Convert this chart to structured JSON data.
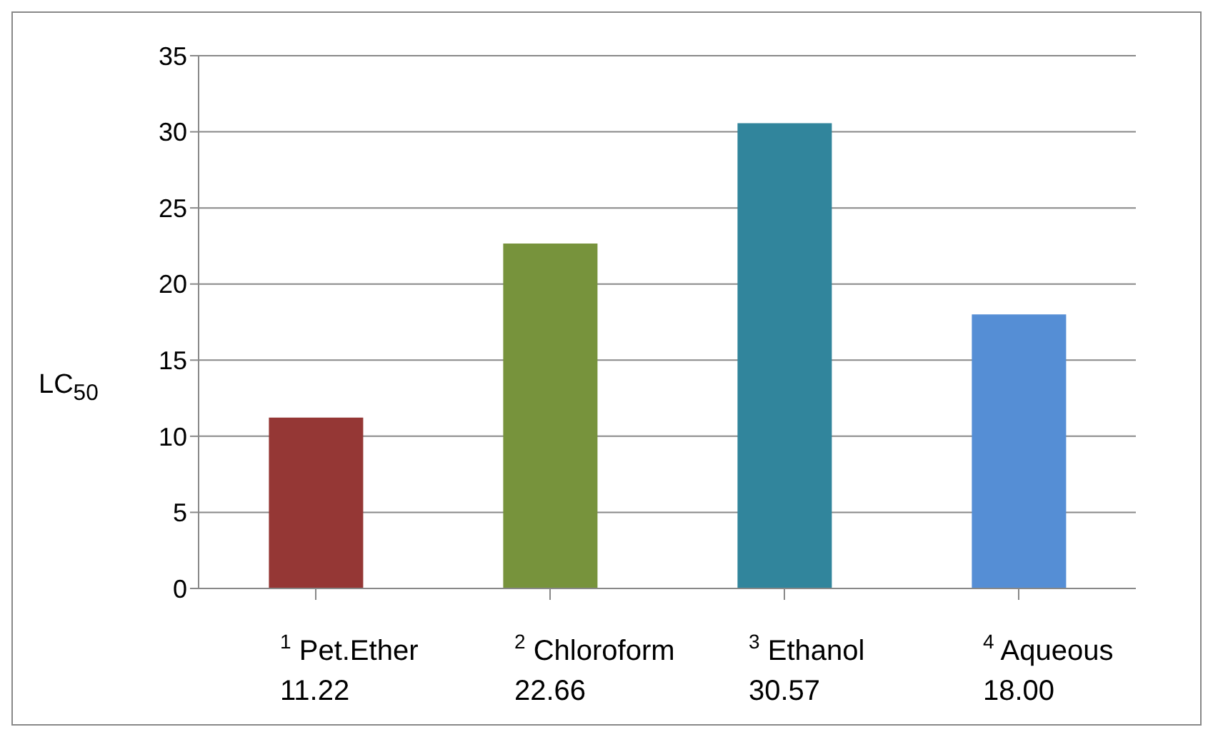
{
  "chart_data": {
    "type": "bar",
    "ylabel": "LC$_{50}$",
    "categories": [
      "$^{1}$ Pet.Ether 11.22",
      "$^{2}$ Chloroform 22.66",
      "$^{3}$ Ethanol 30.57",
      "$^{4}$ Aqueous 18.00"
    ],
    "values": [
      11.22,
      22.66,
      30.57,
      18.0
    ],
    "colors": [
      "#953735",
      "#77933c",
      "#31859c",
      "#558ed5"
    ],
    "ylim": [
      0,
      35
    ],
    "yticks": [
      0,
      5,
      10,
      15,
      20,
      25,
      30,
      35
    ],
    "grid": "y"
  }
}
